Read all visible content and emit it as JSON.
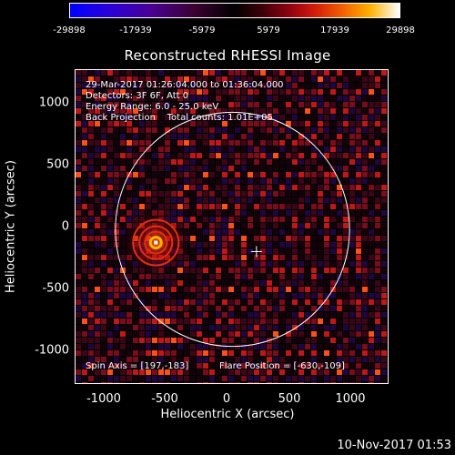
{
  "colorbar": {
    "ticks": [
      "-29898",
      "-17939",
      "-5979",
      "5979",
      "17939",
      "29898"
    ],
    "min": -29898,
    "max": 29898,
    "colors": [
      "#0000ff",
      "#000000",
      "#ff3300",
      "#ffff80",
      "#ffffff"
    ]
  },
  "chart_data": {
    "type": "heatmap",
    "title": "Reconstructed RHESSI Image",
    "xlabel": "Heliocentric X (arcsec)",
    "ylabel": "Heliocentric Y (arcsec)",
    "xlim": [
      -1290,
      1290
    ],
    "ylim": [
      -1280,
      1310
    ],
    "xticks": [
      "-1000",
      "-500",
      "0",
      "500",
      "1000"
    ],
    "yticks": [
      "1000",
      "500",
      "0",
      "-500",
      "-1000"
    ],
    "xtick_values": [
      -1000,
      -500,
      0,
      500,
      1000
    ],
    "ytick_values": [
      1000,
      500,
      0,
      -500,
      -1000
    ],
    "solar_limb_radius": 962,
    "source_peak": {
      "x": -630,
      "y": -109
    },
    "flare_marker": {
      "x": 197,
      "y": -183
    },
    "info_lines": [
      "29-Mar-2017 01:26:04.000 to 01:36:04.000",
      "Detectors: 3F 6F, Att 0",
      "Energy Range: 6.0 - 25.0 keV",
      "Back Projection    Total counts: 1.01E+05"
    ],
    "spin_axis": "Spin Axis = [197,-183]",
    "flare_position": "Flare Position = [-630,-109]"
  },
  "timestamp": "10-Nov-2017 01:53"
}
